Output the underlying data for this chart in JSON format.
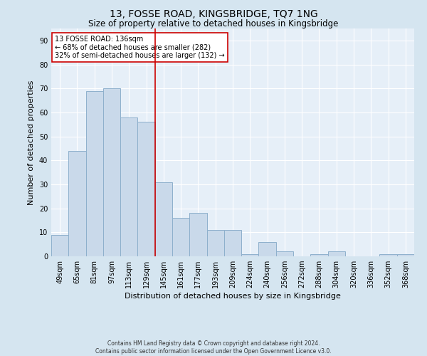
{
  "title": "13, FOSSE ROAD, KINGSBRIDGE, TQ7 1NG",
  "subtitle": "Size of property relative to detached houses in Kingsbridge",
  "xlabel": "Distribution of detached houses by size in Kingsbridge",
  "ylabel": "Number of detached properties",
  "categories": [
    "49sqm",
    "65sqm",
    "81sqm",
    "97sqm",
    "113sqm",
    "129sqm",
    "145sqm",
    "161sqm",
    "177sqm",
    "193sqm",
    "209sqm",
    "224sqm",
    "240sqm",
    "256sqm",
    "272sqm",
    "288sqm",
    "304sqm",
    "320sqm",
    "336sqm",
    "352sqm",
    "368sqm"
  ],
  "values": [
    9,
    44,
    69,
    70,
    58,
    56,
    31,
    16,
    18,
    11,
    11,
    1,
    6,
    2,
    0,
    1,
    2,
    0,
    0,
    1,
    1
  ],
  "bar_color": "#c9d9ea",
  "bar_edge_color": "#8eb0cc",
  "vline_x_index": 5.5,
  "vline_color": "#cc0000",
  "annotation_text": "13 FOSSE ROAD: 136sqm\n← 68% of detached houses are smaller (282)\n32% of semi-detached houses are larger (132) →",
  "annotation_box_color": "#ffffff",
  "annotation_box_edge_color": "#cc0000",
  "ylim": [
    0,
    95
  ],
  "yticks": [
    0,
    10,
    20,
    30,
    40,
    50,
    60,
    70,
    80,
    90
  ],
  "background_color": "#d5e5f0",
  "plot_bg_color": "#e6eff8",
  "grid_color": "#ffffff",
  "title_fontsize": 10,
  "subtitle_fontsize": 8.5,
  "xlabel_fontsize": 8,
  "ylabel_fontsize": 8,
  "tick_fontsize": 7,
  "footer_text": "Contains HM Land Registry data © Crown copyright and database right 2024.\nContains public sector information licensed under the Open Government Licence v3.0."
}
